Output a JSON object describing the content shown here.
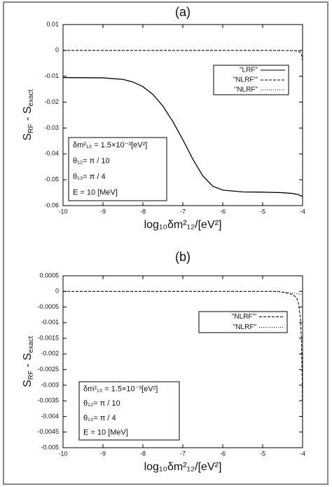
{
  "chart_data": [
    {
      "type": "line",
      "title": "(a)",
      "xlabel": "log₁₀δm²₁₂/[eV²]",
      "ylabel": [
        "S",
        "RF",
        " - S",
        "exact"
      ],
      "xlim": [
        -10,
        -4
      ],
      "xticks": [
        -10,
        -9,
        -8,
        -7,
        -6,
        -5,
        -4
      ],
      "ylim": [
        -0.06,
        0.01
      ],
      "yticks": [
        0.01,
        0,
        -0.01,
        -0.02,
        -0.03,
        -0.04,
        -0.05,
        -0.06
      ],
      "series": [
        {
          "name": "\"LRF\"",
          "color": "#000000",
          "style": "solid",
          "x": [
            -10,
            -9,
            -8.5,
            -8.25,
            -8,
            -7.75,
            -7.5,
            -7.25,
            -7,
            -6.75,
            -6.5,
            -6.25,
            -6,
            -5.5,
            -5,
            -4.5,
            -4.25,
            -4.1,
            -4
          ],
          "values": [
            -0.0105,
            -0.0106,
            -0.0112,
            -0.0122,
            -0.014,
            -0.017,
            -0.0215,
            -0.0275,
            -0.0345,
            -0.042,
            -0.0485,
            -0.0525,
            -0.054,
            -0.0547,
            -0.0548,
            -0.055,
            -0.0553,
            -0.0558,
            -0.0565
          ]
        },
        {
          "name": "\"NLRF'\"",
          "color": "#000000",
          "style": "dashed",
          "x": [
            -10,
            -4.6,
            -4.4,
            -4.25,
            -4.15,
            -4.1,
            -4.06,
            -4.03,
            -4.01,
            -4
          ],
          "values": [
            0,
            0,
            -5e-05,
            -0.0001,
            -0.0002,
            -0.0004,
            -0.0008,
            -0.0015,
            -0.0028,
            -0.0045
          ]
        },
        {
          "name": "\"NLRF\"",
          "color": "#000000",
          "style": "dotted",
          "x": [
            -10,
            -4.8,
            -4.6,
            -4.4,
            -4.2,
            -4.1,
            -4
          ],
          "values": [
            0,
            0,
            -1e-05,
            -3e-05,
            -6e-05,
            -8e-05,
            -0.0001
          ]
        }
      ],
      "annotation": [
        "δm²₁₃ = 1.5×10⁻³[eV²]",
        "θ₁₂= π / 10",
        "θ₁₃= π / 4",
        "E = 10 [MeV]"
      ]
    },
    {
      "type": "line",
      "title": "(b)",
      "xlabel": "log₁₀δm²₁₂/[eV²]",
      "ylabel": [
        "S",
        "RF",
        " - S",
        "exact"
      ],
      "xlim": [
        -10,
        -4
      ],
      "xticks": [
        -10,
        -9,
        -8,
        -7,
        -6,
        -5,
        -4
      ],
      "ylim": [
        -0.005,
        0.0005
      ],
      "yticks": [
        0.0005,
        0,
        -0.0005,
        -0.001,
        -0.0015,
        -0.002,
        -0.0025,
        -0.003,
        -0.0035,
        -0.004,
        -0.0045,
        -0.005
      ],
      "series": [
        {
          "name": "\"NLRF'\"",
          "color": "#000000",
          "style": "dashed",
          "x": [
            -10,
            -4.6,
            -4.4,
            -4.25,
            -4.15,
            -4.1,
            -4.06,
            -4.03,
            -4.01,
            -4
          ],
          "values": [
            0,
            0,
            -5e-05,
            -0.0001,
            -0.0002,
            -0.0004,
            -0.0008,
            -0.0015,
            -0.0028,
            -0.0045
          ]
        },
        {
          "name": "\"NLRF\"",
          "color": "#000000",
          "style": "dotted",
          "x": [
            -10,
            -4.8,
            -4.6,
            -4.4,
            -4.2,
            -4.1,
            -4
          ],
          "values": [
            0,
            0,
            -1e-05,
            -3e-05,
            -6e-05,
            -8e-05,
            -0.0001
          ]
        }
      ],
      "annotation": [
        "δm²₁₃ = 1.5×10⁻³[eV²]",
        "θ₁₂= π / 10",
        "θ₁₃= π / 4",
        "E = 10 [MeV]"
      ]
    }
  ]
}
